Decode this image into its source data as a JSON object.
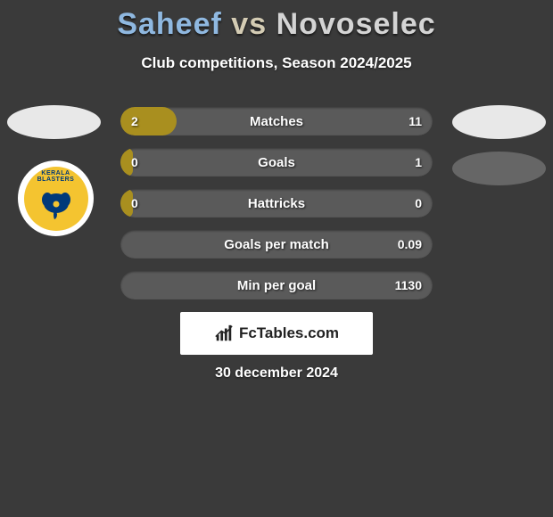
{
  "title_left": "Saheef",
  "title_vs": "vs",
  "title_right": "Novoselec",
  "subtitle": "Club competitions, Season 2024/2025",
  "date": "30 december 2024",
  "branding": "FcTables.com",
  "colors": {
    "fill": "#a98f1f",
    "track": "#5a5a5a",
    "title_left": "#8fb8e0",
    "title_vs": "#d4ccb4",
    "title_right": "#d4d4d4",
    "page_bg": "#3a3a3a",
    "branding_bg": "#ffffff",
    "badge_outer": "#ffffff",
    "badge_inner": "#f4c430"
  },
  "bars": [
    {
      "label": "Matches",
      "left": "2",
      "right": "11",
      "fill_pct": 18
    },
    {
      "label": "Goals",
      "left": "0",
      "right": "1",
      "fill_pct": 4
    },
    {
      "label": "Hattricks",
      "left": "0",
      "right": "0",
      "fill_pct": 4
    },
    {
      "label": "Goals per match",
      "left": "",
      "right": "0.09",
      "fill_pct": 0
    },
    {
      "label": "Min per goal",
      "left": "",
      "right": "1130",
      "fill_pct": 0
    }
  ],
  "badge_text": "KERALA BLASTERS"
}
